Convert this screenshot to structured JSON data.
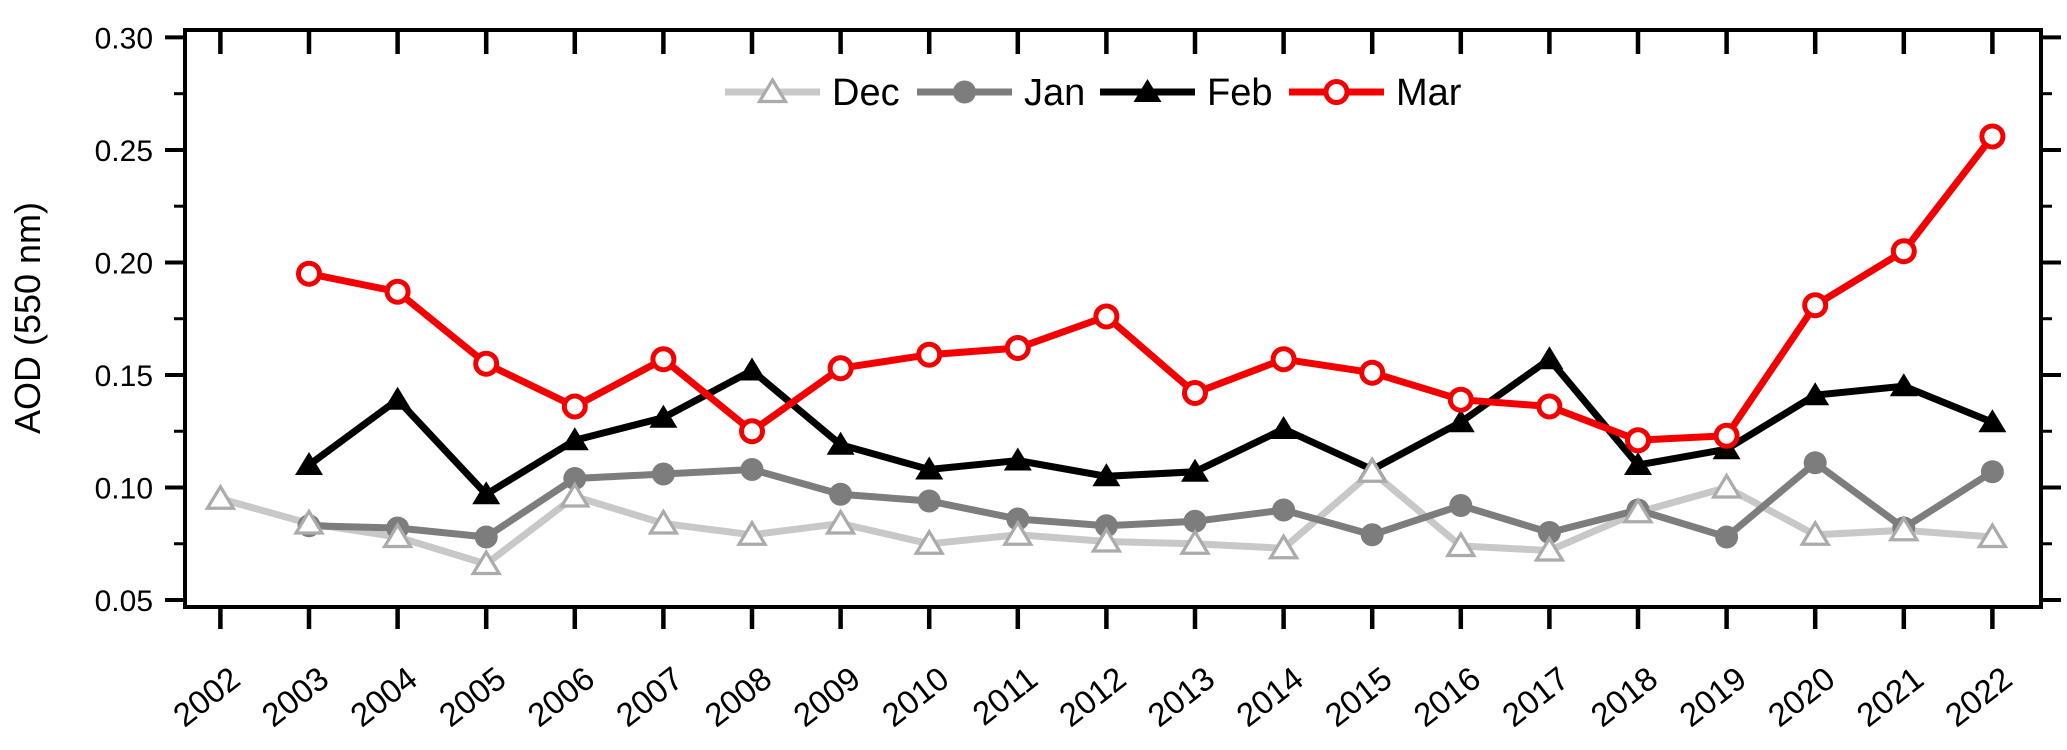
{
  "chart_data": {
    "type": "line",
    "title": "",
    "xlabel": "",
    "ylabel": "AOD (550 nm)",
    "x": [
      2002,
      2003,
      2004,
      2005,
      2006,
      2007,
      2008,
      2009,
      2010,
      2011,
      2012,
      2013,
      2014,
      2015,
      2016,
      2017,
      2018,
      2019,
      2020,
      2021,
      2022
    ],
    "ylim": [
      0.05,
      0.3
    ],
    "ytick_interval": 0.05,
    "ytick_minor_interval": 0.025,
    "ytick_labels": [
      "0.05",
      "0.10",
      "0.15",
      "0.20",
      "0.25",
      "0.30"
    ],
    "grid": false,
    "legend_position": "top-center",
    "frame_color": "#000000",
    "series": [
      {
        "name": "Dec",
        "marker": "open-triangle",
        "color": "#c8c8c8",
        "marker_stroke": "#ababab",
        "values": [
          0.095,
          0.084,
          0.078,
          0.066,
          0.096,
          0.084,
          0.079,
          0.084,
          0.075,
          0.079,
          0.076,
          0.075,
          0.073,
          0.107,
          0.074,
          0.072,
          0.089,
          0.1,
          0.079,
          0.081,
          0.078
        ]
      },
      {
        "name": "Jan",
        "marker": "filled-circle",
        "color": "#7d7d7d",
        "marker_stroke": "#7d7d7d",
        "values": [
          null,
          0.083,
          0.082,
          0.078,
          0.104,
          0.106,
          0.108,
          0.097,
          0.094,
          0.086,
          0.083,
          0.085,
          0.09,
          0.079,
          0.092,
          0.08,
          0.09,
          0.078,
          0.111,
          0.082,
          0.107
        ]
      },
      {
        "name": "Feb",
        "marker": "filled-triangle",
        "color": "#000000",
        "marker_stroke": "#000000",
        "values": [
          null,
          0.11,
          0.139,
          0.097,
          0.121,
          0.131,
          0.152,
          0.119,
          0.108,
          0.112,
          0.105,
          0.107,
          0.126,
          0.108,
          0.129,
          0.157,
          0.11,
          0.117,
          0.141,
          0.145,
          0.129
        ]
      },
      {
        "name": "Mar",
        "marker": "open-circle",
        "color": "#f40000",
        "marker_stroke": "#f40000",
        "values": [
          null,
          0.195,
          0.187,
          0.155,
          0.136,
          0.157,
          0.125,
          0.153,
          0.159,
          0.162,
          0.176,
          0.142,
          0.157,
          0.151,
          0.139,
          0.136,
          0.121,
          0.123,
          0.181,
          0.205,
          0.256
        ]
      }
    ]
  }
}
